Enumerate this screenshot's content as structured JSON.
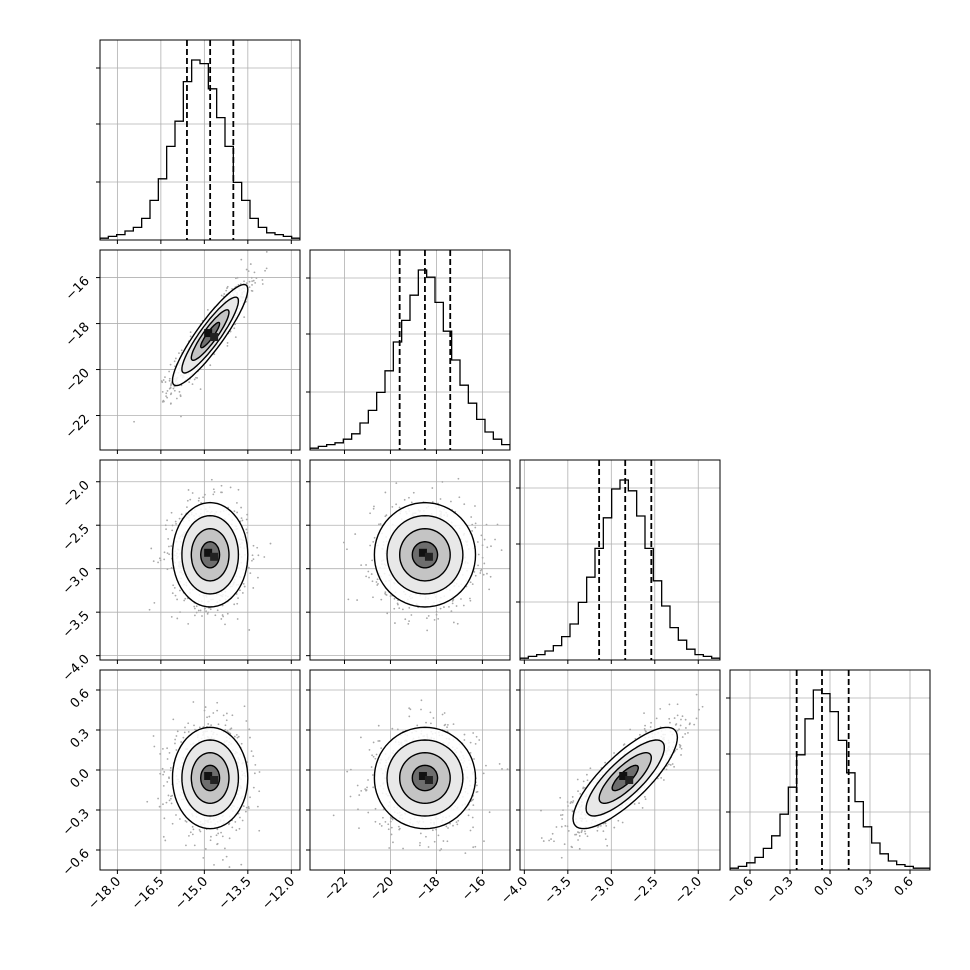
{
  "chart_data": {
    "type": "corner",
    "parameters": [
      {
        "mean": -14.8,
        "sd": 0.65,
        "range": [
          -18.6,
          -11.7
        ],
        "ticks": [
          "−18.0",
          "−16.5",
          "−15.0",
          "−13.5",
          "−12.0"
        ],
        "tick_values": [
          -18.0,
          -16.5,
          -15.0,
          -13.5,
          -12.0
        ],
        "quantiles": [
          -15.6,
          -14.8,
          -14.0
        ]
      },
      {
        "mean": -18.5,
        "sd": 1.1,
        "range": [
          -23.5,
          -14.8
        ],
        "ticks": [
          "−22",
          "−20",
          "−18",
          "−16"
        ],
        "tick_values": [
          -22,
          -20,
          -18,
          -16
        ],
        "quantiles": [
          -19.6,
          -18.5,
          -17.4
        ]
      },
      {
        "mean": -2.84,
        "sd": 0.3,
        "range": [
          -4.05,
          -1.75
        ],
        "ticks": [
          "−4.0",
          "−3.5",
          "−3.0",
          "−2.5",
          "−2.0"
        ],
        "tick_values": [
          -4.0,
          -3.5,
          -3.0,
          -2.5,
          -2.0
        ],
        "quantiles": [
          -3.14,
          -2.84,
          -2.54
        ]
      },
      {
        "mean": -0.06,
        "sd": 0.19,
        "range": [
          -0.75,
          0.75
        ],
        "ticks": [
          "−0.6",
          "−0.3",
          "0.0",
          "0.3",
          "0.6"
        ],
        "tick_values": [
          -0.6,
          -0.3,
          0.0,
          0.3,
          0.6
        ],
        "quantiles": [
          -0.25,
          -0.06,
          0.14
        ]
      }
    ],
    "correlations": [
      [
        1,
        0.9,
        0.0,
        0.0
      ],
      [
        0.9,
        1,
        0.0,
        0.0
      ],
      [
        0.0,
        0.0,
        1,
        0.8
      ],
      [
        0.0,
        0.0,
        0.8,
        1
      ]
    ],
    "histograms": [
      [
        1,
        2,
        3,
        5,
        7,
        12,
        22,
        34,
        52,
        66,
        88,
        100,
        98,
        84,
        68,
        52,
        32,
        22,
        12,
        7,
        4,
        3,
        2,
        1
      ],
      [
        1,
        2,
        3,
        4,
        6,
        9,
        15,
        22,
        32,
        44,
        60,
        72,
        86,
        100,
        96,
        82,
        66,
        50,
        36,
        26,
        17,
        10,
        6,
        3
      ],
      [
        1,
        2,
        3,
        5,
        8,
        13,
        20,
        32,
        46,
        62,
        79,
        95,
        100,
        94,
        80,
        62,
        44,
        30,
        18,
        11,
        6,
        3,
        2,
        1
      ],
      [
        1,
        2,
        4,
        7,
        12,
        19,
        31,
        46,
        64,
        84,
        100,
        98,
        88,
        72,
        54,
        38,
        24,
        15,
        9,
        5,
        3,
        2,
        1,
        1
      ]
    ],
    "contour_levels": [
      "0.5 sigma",
      "1 sigma",
      "1.5 sigma",
      "2 sigma"
    ],
    "grid": true,
    "title": "",
    "xlabel": "",
    "ylabel": ""
  }
}
